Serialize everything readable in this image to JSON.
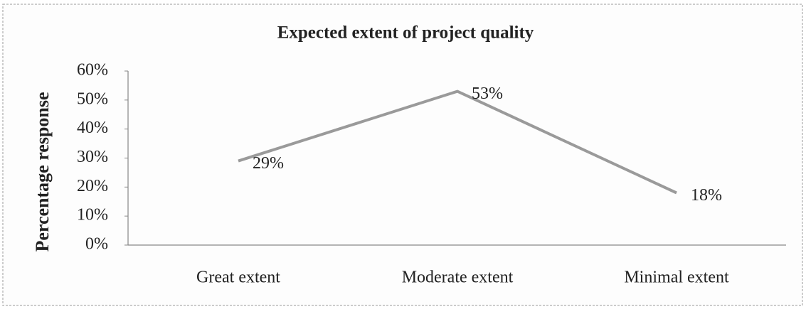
{
  "chart_data": {
    "type": "line",
    "title": "Expected extent of project quality",
    "ylabel": "Percentage response",
    "categories": [
      "Great extent",
      "Moderate extent",
      "Minimal extent"
    ],
    "series": [
      {
        "name": "Percentage response",
        "color": "#9a9a9a",
        "values": [
          29,
          53,
          18
        ],
        "value_labels": [
          "29%",
          "53%",
          "18%"
        ]
      }
    ],
    "ylim": [
      0,
      60
    ],
    "yticks": [
      {
        "value": 0,
        "label": "0%"
      },
      {
        "value": 10,
        "label": "10%"
      },
      {
        "value": 20,
        "label": "20%"
      },
      {
        "value": 30,
        "label": "30%"
      },
      {
        "value": 40,
        "label": "40%"
      },
      {
        "value": 50,
        "label": "50%"
      },
      {
        "value": 60,
        "label": "60%"
      }
    ],
    "grid": false
  }
}
